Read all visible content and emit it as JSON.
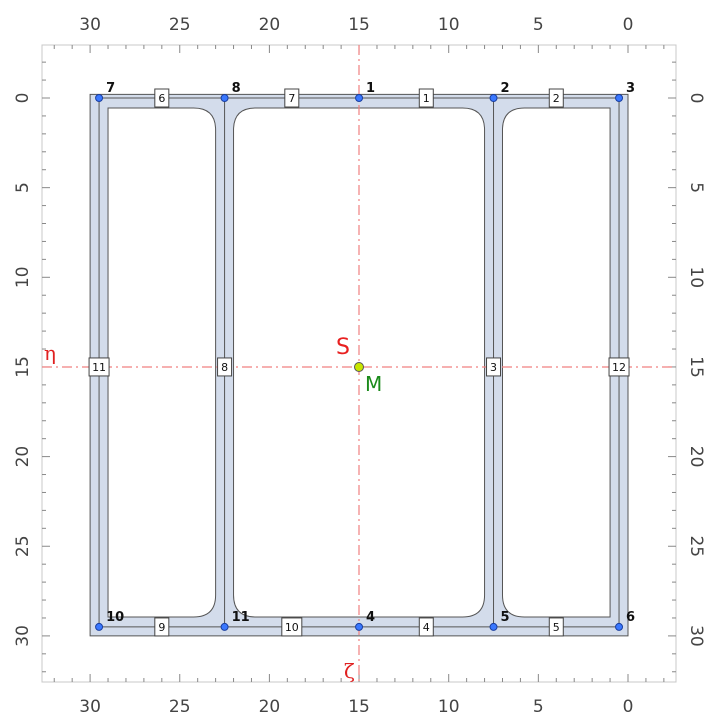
{
  "axes": {
    "horizontal_ticks": [
      "30",
      "25",
      "20",
      "15",
      "10",
      "5",
      "0"
    ],
    "vertical_ticks": [
      "0",
      "5",
      "10",
      "15",
      "20",
      "25",
      "30"
    ],
    "eta_label": "η",
    "zeta_label": "ζ"
  },
  "points": {
    "shear_center_label": "S",
    "centroid_label": "M"
  },
  "colors": {
    "section_fill": "#d3dceb",
    "section_stroke": "#555555",
    "axis_line": "#f08080",
    "node_fill": "#3a78ff",
    "centroid_fill": "#c8e600"
  },
  "nodes": [
    {
      "label": "1",
      "y": 15,
      "z": 0
    },
    {
      "label": "2",
      "y": 7.5,
      "z": 0
    },
    {
      "label": "3",
      "y": 0.5,
      "z": 0
    },
    {
      "label": "4",
      "y": 15,
      "z": 29.5
    },
    {
      "label": "5",
      "y": 7.5,
      "z": 29.5
    },
    {
      "label": "6",
      "y": 0.5,
      "z": 29.5
    },
    {
      "label": "7",
      "y": 29.5,
      "z": 0
    },
    {
      "label": "8",
      "y": 22.5,
      "z": 0
    },
    {
      "label": "10",
      "y": 29.5,
      "z": 29.5
    },
    {
      "label": "11",
      "y": 22.5,
      "z": 29.5
    }
  ],
  "elements": [
    {
      "label": "1",
      "y": 11.25,
      "z": 0
    },
    {
      "label": "2",
      "y": 4,
      "z": 0
    },
    {
      "label": "3",
      "y": 7.5,
      "z": 15
    },
    {
      "label": "4",
      "y": 11.25,
      "z": 29.5
    },
    {
      "label": "5",
      "y": 4,
      "z": 29.5
    },
    {
      "label": "6",
      "y": 26,
      "z": 0
    },
    {
      "label": "7",
      "y": 18.75,
      "z": 0
    },
    {
      "label": "8",
      "y": 22.5,
      "z": 15
    },
    {
      "label": "9",
      "y": 26,
      "z": 29.5
    },
    {
      "label": "10",
      "y": 18.75,
      "z": 29.5
    },
    {
      "label": "11",
      "y": 29.5,
      "z": 15
    },
    {
      "label": "12",
      "y": 0.5,
      "z": 15
    }
  ]
}
